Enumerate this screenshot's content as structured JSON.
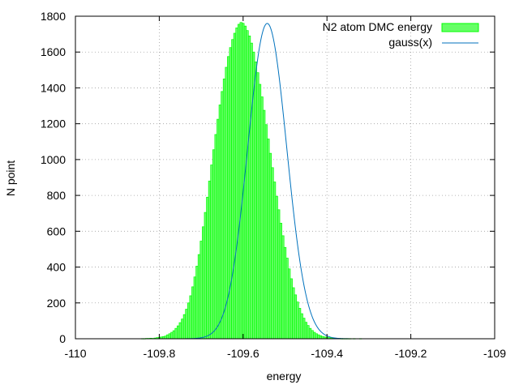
{
  "chart_data": {
    "type": "bar",
    "title": "",
    "xlabel": "energy",
    "ylabel": "N point",
    "xlim": [
      -110,
      -109
    ],
    "ylim": [
      0,
      1800
    ],
    "xticks": [
      "-110",
      "-109.8",
      "-109.6",
      "-109.4",
      "-109.2",
      "-109"
    ],
    "xtick_values": [
      -110,
      -109.8,
      -109.6,
      -109.4,
      -109.2,
      -109
    ],
    "yticks": [
      "0",
      "200",
      "400",
      "600",
      "800",
      "1000",
      "1200",
      "1400",
      "1600",
      "1800"
    ],
    "ytick_values": [
      0,
      200,
      400,
      600,
      800,
      1000,
      1200,
      1400,
      1600,
      1800
    ],
    "grid": true,
    "legend_position": "top-right",
    "series": [
      {
        "name": "N2 atom DMC energy",
        "kind": "histogram",
        "color": "#00ff00",
        "fill": "#66ff66",
        "bin_width": 0.005,
        "x": [
          -109.84,
          -109.835,
          -109.83,
          -109.825,
          -109.82,
          -109.815,
          -109.81,
          -109.805,
          -109.8,
          -109.795,
          -109.79,
          -109.785,
          -109.78,
          -109.775,
          -109.77,
          -109.765,
          -109.76,
          -109.755,
          -109.75,
          -109.745,
          -109.74,
          -109.735,
          -109.73,
          -109.725,
          -109.72,
          -109.715,
          -109.71,
          -109.705,
          -109.7,
          -109.695,
          -109.69,
          -109.685,
          -109.68,
          -109.675,
          -109.67,
          -109.665,
          -109.66,
          -109.655,
          -109.65,
          -109.645,
          -109.64,
          -109.635,
          -109.63,
          -109.625,
          -109.62,
          -109.615,
          -109.61,
          -109.605,
          -109.6,
          -109.595,
          -109.59,
          -109.585,
          -109.58,
          -109.575,
          -109.57,
          -109.565,
          -109.56,
          -109.555,
          -109.55,
          -109.545,
          -109.54,
          -109.535,
          -109.53,
          -109.525,
          -109.52,
          -109.515,
          -109.51,
          -109.505,
          -109.5,
          -109.495,
          -109.49,
          -109.485,
          -109.48,
          -109.475,
          -109.47,
          -109.465,
          -109.46,
          -109.455,
          -109.45,
          -109.445,
          -109.44,
          -109.435,
          -109.43,
          -109.425,
          -109.42,
          -109.415,
          -109.41,
          -109.405,
          -109.4,
          -109.395,
          -109.39,
          -109.385,
          -109.38,
          -109.375,
          -109.37,
          -109.365,
          -109.36,
          -109.355,
          -109.35,
          -109.345,
          -109.34,
          -109.335,
          -109.33,
          -109.325,
          -109.32,
          -109.315,
          -109.31,
          -109.305,
          -109.3,
          -109.295,
          -109.29,
          -109.285,
          -109.28,
          -109.275
        ],
        "values": [
          1,
          1,
          2,
          2,
          3,
          2,
          4,
          6,
          8,
          10,
          12,
          15,
          22,
          28,
          36,
          45,
          58,
          72,
          90,
          110,
          135,
          165,
          200,
          240,
          290,
          345,
          405,
          470,
          545,
          625,
          705,
          790,
          880,
          970,
          1055,
          1140,
          1225,
          1305,
          1380,
          1450,
          1515,
          1575,
          1625,
          1670,
          1705,
          1735,
          1755,
          1765,
          1760,
          1745,
          1720,
          1690,
          1650,
          1600,
          1545,
          1485,
          1420,
          1350,
          1275,
          1195,
          1115,
          1035,
          955,
          875,
          795,
          720,
          645,
          575,
          510,
          450,
          390,
          335,
          285,
          245,
          205,
          170,
          140,
          115,
          92,
          74,
          58,
          46,
          36,
          28,
          22,
          17,
          13,
          10,
          8,
          6,
          5,
          4,
          3,
          2,
          2,
          1,
          1,
          1,
          1,
          1,
          0,
          1,
          0,
          0,
          1,
          0,
          0,
          0,
          0,
          0,
          0,
          0,
          0,
          0
        ]
      },
      {
        "name": "gauss(x)",
        "kind": "line",
        "color": "#0072bd",
        "mean": -109.5425,
        "sigma": 0.0465,
        "amplitude": 1760
      }
    ]
  }
}
